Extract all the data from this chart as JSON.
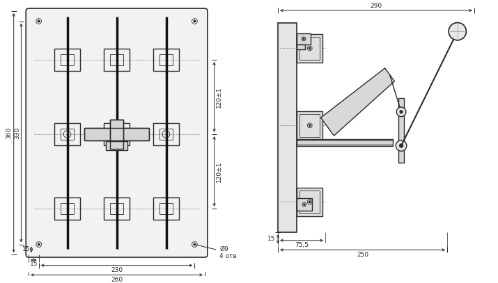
{
  "bg_color": "#ffffff",
  "line_color": "#2a2a2a",
  "dim_color": "#2a2a2a",
  "dash_color": "#999999",
  "lw_main": 1.0,
  "lw_thin": 0.6,
  "lw_thick": 2.5,
  "fig_w": 7.15,
  "fig_h": 4.07,
  "dpi": 100
}
